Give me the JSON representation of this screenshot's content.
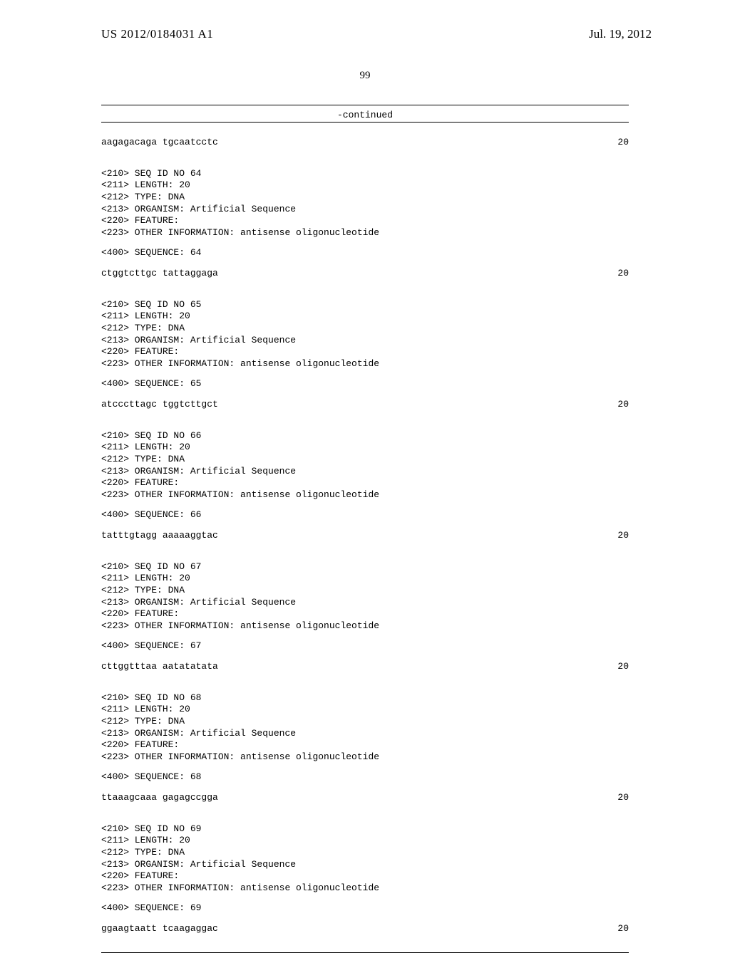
{
  "header": {
    "left": "US 2012/0184031 A1",
    "right": "Jul. 19, 2012"
  },
  "page_number": "99",
  "continued_label": "-continued",
  "first_sequence": {
    "seq": "aagagacaga tgcaatcctc",
    "len": "20"
  },
  "entries": [
    {
      "lines": [
        "<210> SEQ ID NO 64",
        "<211> LENGTH: 20",
        "<212> TYPE: DNA",
        "<213> ORGANISM: Artificial Sequence",
        "<220> FEATURE:",
        "<223> OTHER INFORMATION: antisense oligonucleotide"
      ],
      "seq_label": "<400> SEQUENCE: 64",
      "seq": "ctggtcttgc tattaggaga",
      "len": "20"
    },
    {
      "lines": [
        "<210> SEQ ID NO 65",
        "<211> LENGTH: 20",
        "<212> TYPE: DNA",
        "<213> ORGANISM: Artificial Sequence",
        "<220> FEATURE:",
        "<223> OTHER INFORMATION: antisense oligonucleotide"
      ],
      "seq_label": "<400> SEQUENCE: 65",
      "seq": "atcccttagc tggtcttgct",
      "len": "20"
    },
    {
      "lines": [
        "<210> SEQ ID NO 66",
        "<211> LENGTH: 20",
        "<212> TYPE: DNA",
        "<213> ORGANISM: Artificial Sequence",
        "<220> FEATURE:",
        "<223> OTHER INFORMATION: antisense oligonucleotide"
      ],
      "seq_label": "<400> SEQUENCE: 66",
      "seq": "tatttgtagg aaaaaggtac",
      "len": "20"
    },
    {
      "lines": [
        "<210> SEQ ID NO 67",
        "<211> LENGTH: 20",
        "<212> TYPE: DNA",
        "<213> ORGANISM: Artificial Sequence",
        "<220> FEATURE:",
        "<223> OTHER INFORMATION: antisense oligonucleotide"
      ],
      "seq_label": "<400> SEQUENCE: 67",
      "seq": "cttggtttaa aatatatata",
      "len": "20"
    },
    {
      "lines": [
        "<210> SEQ ID NO 68",
        "<211> LENGTH: 20",
        "<212> TYPE: DNA",
        "<213> ORGANISM: Artificial Sequence",
        "<220> FEATURE:",
        "<223> OTHER INFORMATION: antisense oligonucleotide"
      ],
      "seq_label": "<400> SEQUENCE: 68",
      "seq": "ttaaagcaaa gagagccgga",
      "len": "20"
    },
    {
      "lines": [
        "<210> SEQ ID NO 69",
        "<211> LENGTH: 20",
        "<212> TYPE: DNA",
        "<213> ORGANISM: Artificial Sequence",
        "<220> FEATURE:",
        "<223> OTHER INFORMATION: antisense oligonucleotide"
      ],
      "seq_label": "<400> SEQUENCE: 69",
      "seq": "ggaagtaatt tcaagaggac",
      "len": "20"
    }
  ]
}
